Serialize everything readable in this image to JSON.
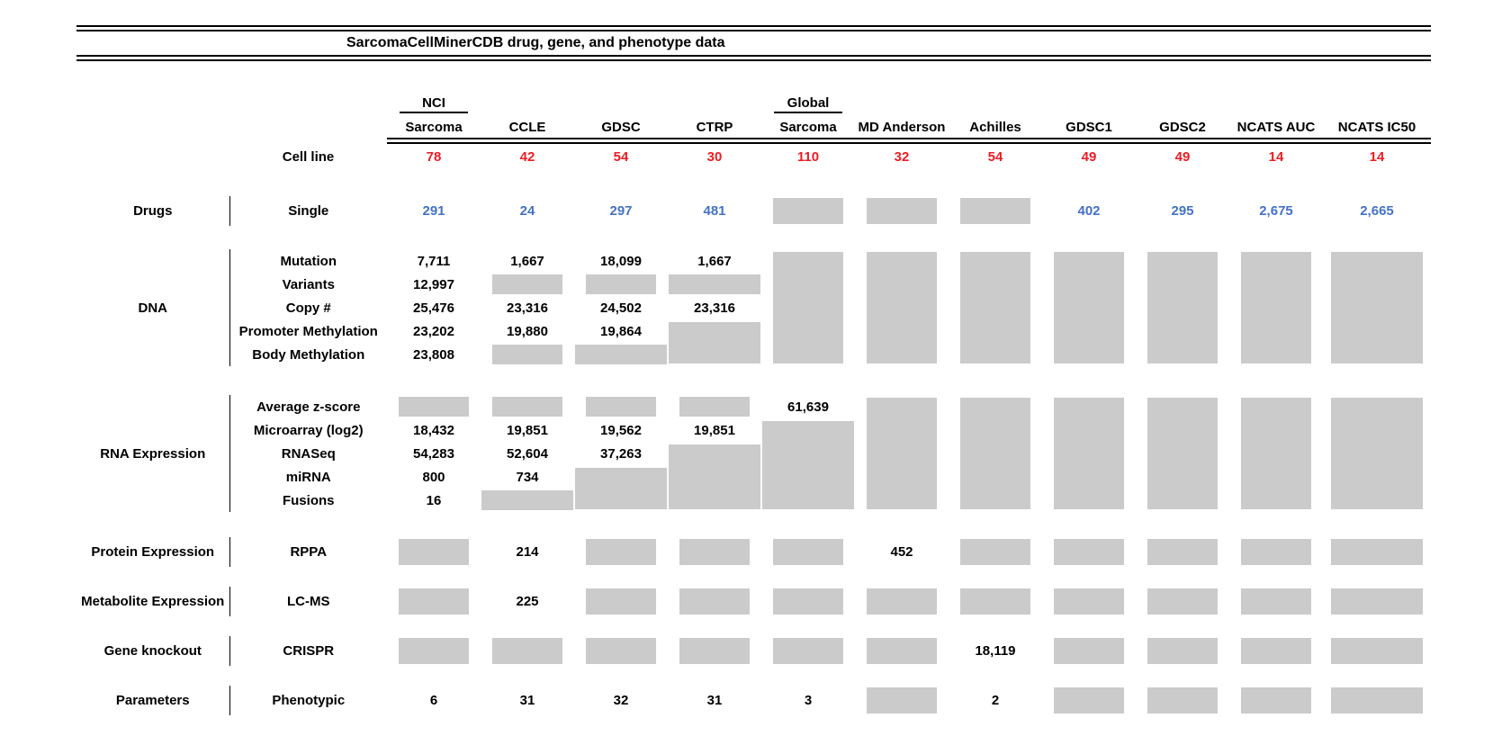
{
  "chart_data": {
    "type": "table",
    "title": "SarcomaCellMinerCDB drug, gene, and phenotype data",
    "colors": {
      "count_red": "#ED1C24",
      "drug_blue": "#4472C4",
      "missing_gray": "#CBCBCB"
    },
    "columns": [
      {
        "line1": "NCI",
        "line2": "Sarcoma"
      },
      {
        "line1": "",
        "line2": "CCLE"
      },
      {
        "line1": "",
        "line2": "GDSC"
      },
      {
        "line1": "",
        "line2": "CTRP"
      },
      {
        "line1": "Global",
        "line2": "Sarcoma"
      },
      {
        "line1": "",
        "line2": "MD Anderson"
      },
      {
        "line1": "",
        "line2": "Achilles"
      },
      {
        "line1": "",
        "line2": "GDSC1"
      },
      {
        "line1": "",
        "line2": "GDSC2"
      },
      {
        "line1": "",
        "line2": "NCATS AUC"
      },
      {
        "line1": "",
        "line2": "NCATS IC50"
      }
    ],
    "cell_line": {
      "label": "Cell line",
      "values": [
        "78",
        "42",
        "54",
        "30",
        "110",
        "32",
        "54",
        "49",
        "49",
        "14",
        "14"
      ]
    },
    "missing_marker": "gray-box",
    "sections": [
      {
        "group": "Drugs",
        "rows": [
          {
            "label": "Single",
            "accent": "blue",
            "cells": [
              "291",
              "24",
              "297",
              "481",
              {
                "gray": 1
              },
              {
                "gray": 1
              },
              {
                "gray": 1
              },
              "402",
              "295",
              "2,675",
              "2,665"
            ]
          }
        ]
      },
      {
        "group": "DNA",
        "rows": [
          {
            "label": "Mutation",
            "cells": [
              "7,711",
              "1,667",
              "18,099",
              "1,667",
              {
                "gray": 5
              },
              {
                "gray": 5
              },
              {
                "gray": 5
              },
              {
                "gray": 5
              },
              {
                "gray": 5
              },
              {
                "gray": 5
              },
              {
                "gray": 5
              }
            ]
          },
          {
            "label": "Variants",
            "cells": [
              "12,997",
              {
                "gray": 1
              },
              {
                "gray": 1
              },
              {
                "gray": 1
              },
              null,
              null,
              null,
              null,
              null,
              null,
              null
            ]
          },
          {
            "label": "Copy #",
            "cells": [
              "25,476",
              "23,316",
              "24,502",
              "23,316",
              null,
              null,
              null,
              null,
              null,
              null,
              null
            ]
          },
          {
            "label": "Promoter Methylation",
            "cells": [
              "23,202",
              "19,880",
              "19,864",
              {
                "gray": 2
              },
              null,
              null,
              null,
              null,
              null,
              null,
              null
            ]
          },
          {
            "label": "Body Methylation",
            "cells": [
              "23,808",
              {
                "gray": 1
              },
              {
                "gray": 1
              },
              null,
              null,
              null,
              null,
              null,
              null,
              null,
              null
            ]
          }
        ]
      },
      {
        "group": "RNA Expression",
        "rows": [
          {
            "label": "Average z-score",
            "cells": [
              {
                "gray": 1
              },
              {
                "gray": 1
              },
              {
                "gray": 1
              },
              {
                "gray": 1
              },
              "61,639",
              {
                "gray": 5
              },
              {
                "gray": 5
              },
              {
                "gray": 5
              },
              {
                "gray": 5
              },
              {
                "gray": 5
              },
              {
                "gray": 5
              }
            ]
          },
          {
            "label": "Microarray (log2)",
            "cells": [
              "18,432",
              "19,851",
              "19,562",
              "19,851",
              {
                "gray": 4
              },
              null,
              null,
              null,
              null,
              null,
              null
            ]
          },
          {
            "label": "RNASeq",
            "cells": [
              "54,283",
              "52,604",
              "37,263",
              {
                "gray": 3
              },
              null,
              null,
              null,
              null,
              null,
              null,
              null
            ]
          },
          {
            "label": "miRNA",
            "cells": [
              "800",
              "734",
              {
                "gray": 2
              },
              null,
              null,
              null,
              null,
              null,
              null,
              null,
              null
            ]
          },
          {
            "label": "Fusions",
            "cells": [
              "16",
              {
                "gray": 1
              },
              null,
              null,
              null,
              null,
              null,
              null,
              null,
              null,
              null
            ]
          }
        ]
      },
      {
        "group": "Protein Expression",
        "rows": [
          {
            "label": "RPPA",
            "cells": [
              {
                "gray": 1
              },
              "214",
              {
                "gray": 1
              },
              {
                "gray": 1
              },
              {
                "gray": 1
              },
              "452",
              {
                "gray": 1
              },
              {
                "gray": 1
              },
              {
                "gray": 1
              },
              {
                "gray": 1
              },
              {
                "gray": 1
              }
            ]
          }
        ]
      },
      {
        "group": "Metabolite Expression",
        "rows": [
          {
            "label": "LC-MS",
            "cells": [
              {
                "gray": 1
              },
              "225",
              {
                "gray": 1
              },
              {
                "gray": 1
              },
              {
                "gray": 1
              },
              {
                "gray": 1
              },
              {
                "gray": 1
              },
              {
                "gray": 1
              },
              {
                "gray": 1
              },
              {
                "gray": 1
              },
              {
                "gray": 1
              }
            ]
          }
        ]
      },
      {
        "group": "Gene knockout",
        "rows": [
          {
            "label": "CRISPR",
            "cells": [
              {
                "gray": 1
              },
              {
                "gray": 1
              },
              {
                "gray": 1
              },
              {
                "gray": 1
              },
              {
                "gray": 1
              },
              {
                "gray": 1
              },
              "18,119",
              {
                "gray": 1
              },
              {
                "gray": 1
              },
              {
                "gray": 1
              },
              {
                "gray": 1
              }
            ]
          }
        ]
      },
      {
        "group": "Parameters",
        "rows": [
          {
            "label": "Phenotypic",
            "cells": [
              "6",
              "31",
              "32",
              "31",
              "3",
              {
                "gray": 1
              },
              "2",
              {
                "gray": 1
              },
              {
                "gray": 1
              },
              {
                "gray": 1
              },
              {
                "gray": 1
              }
            ]
          }
        ]
      }
    ]
  }
}
